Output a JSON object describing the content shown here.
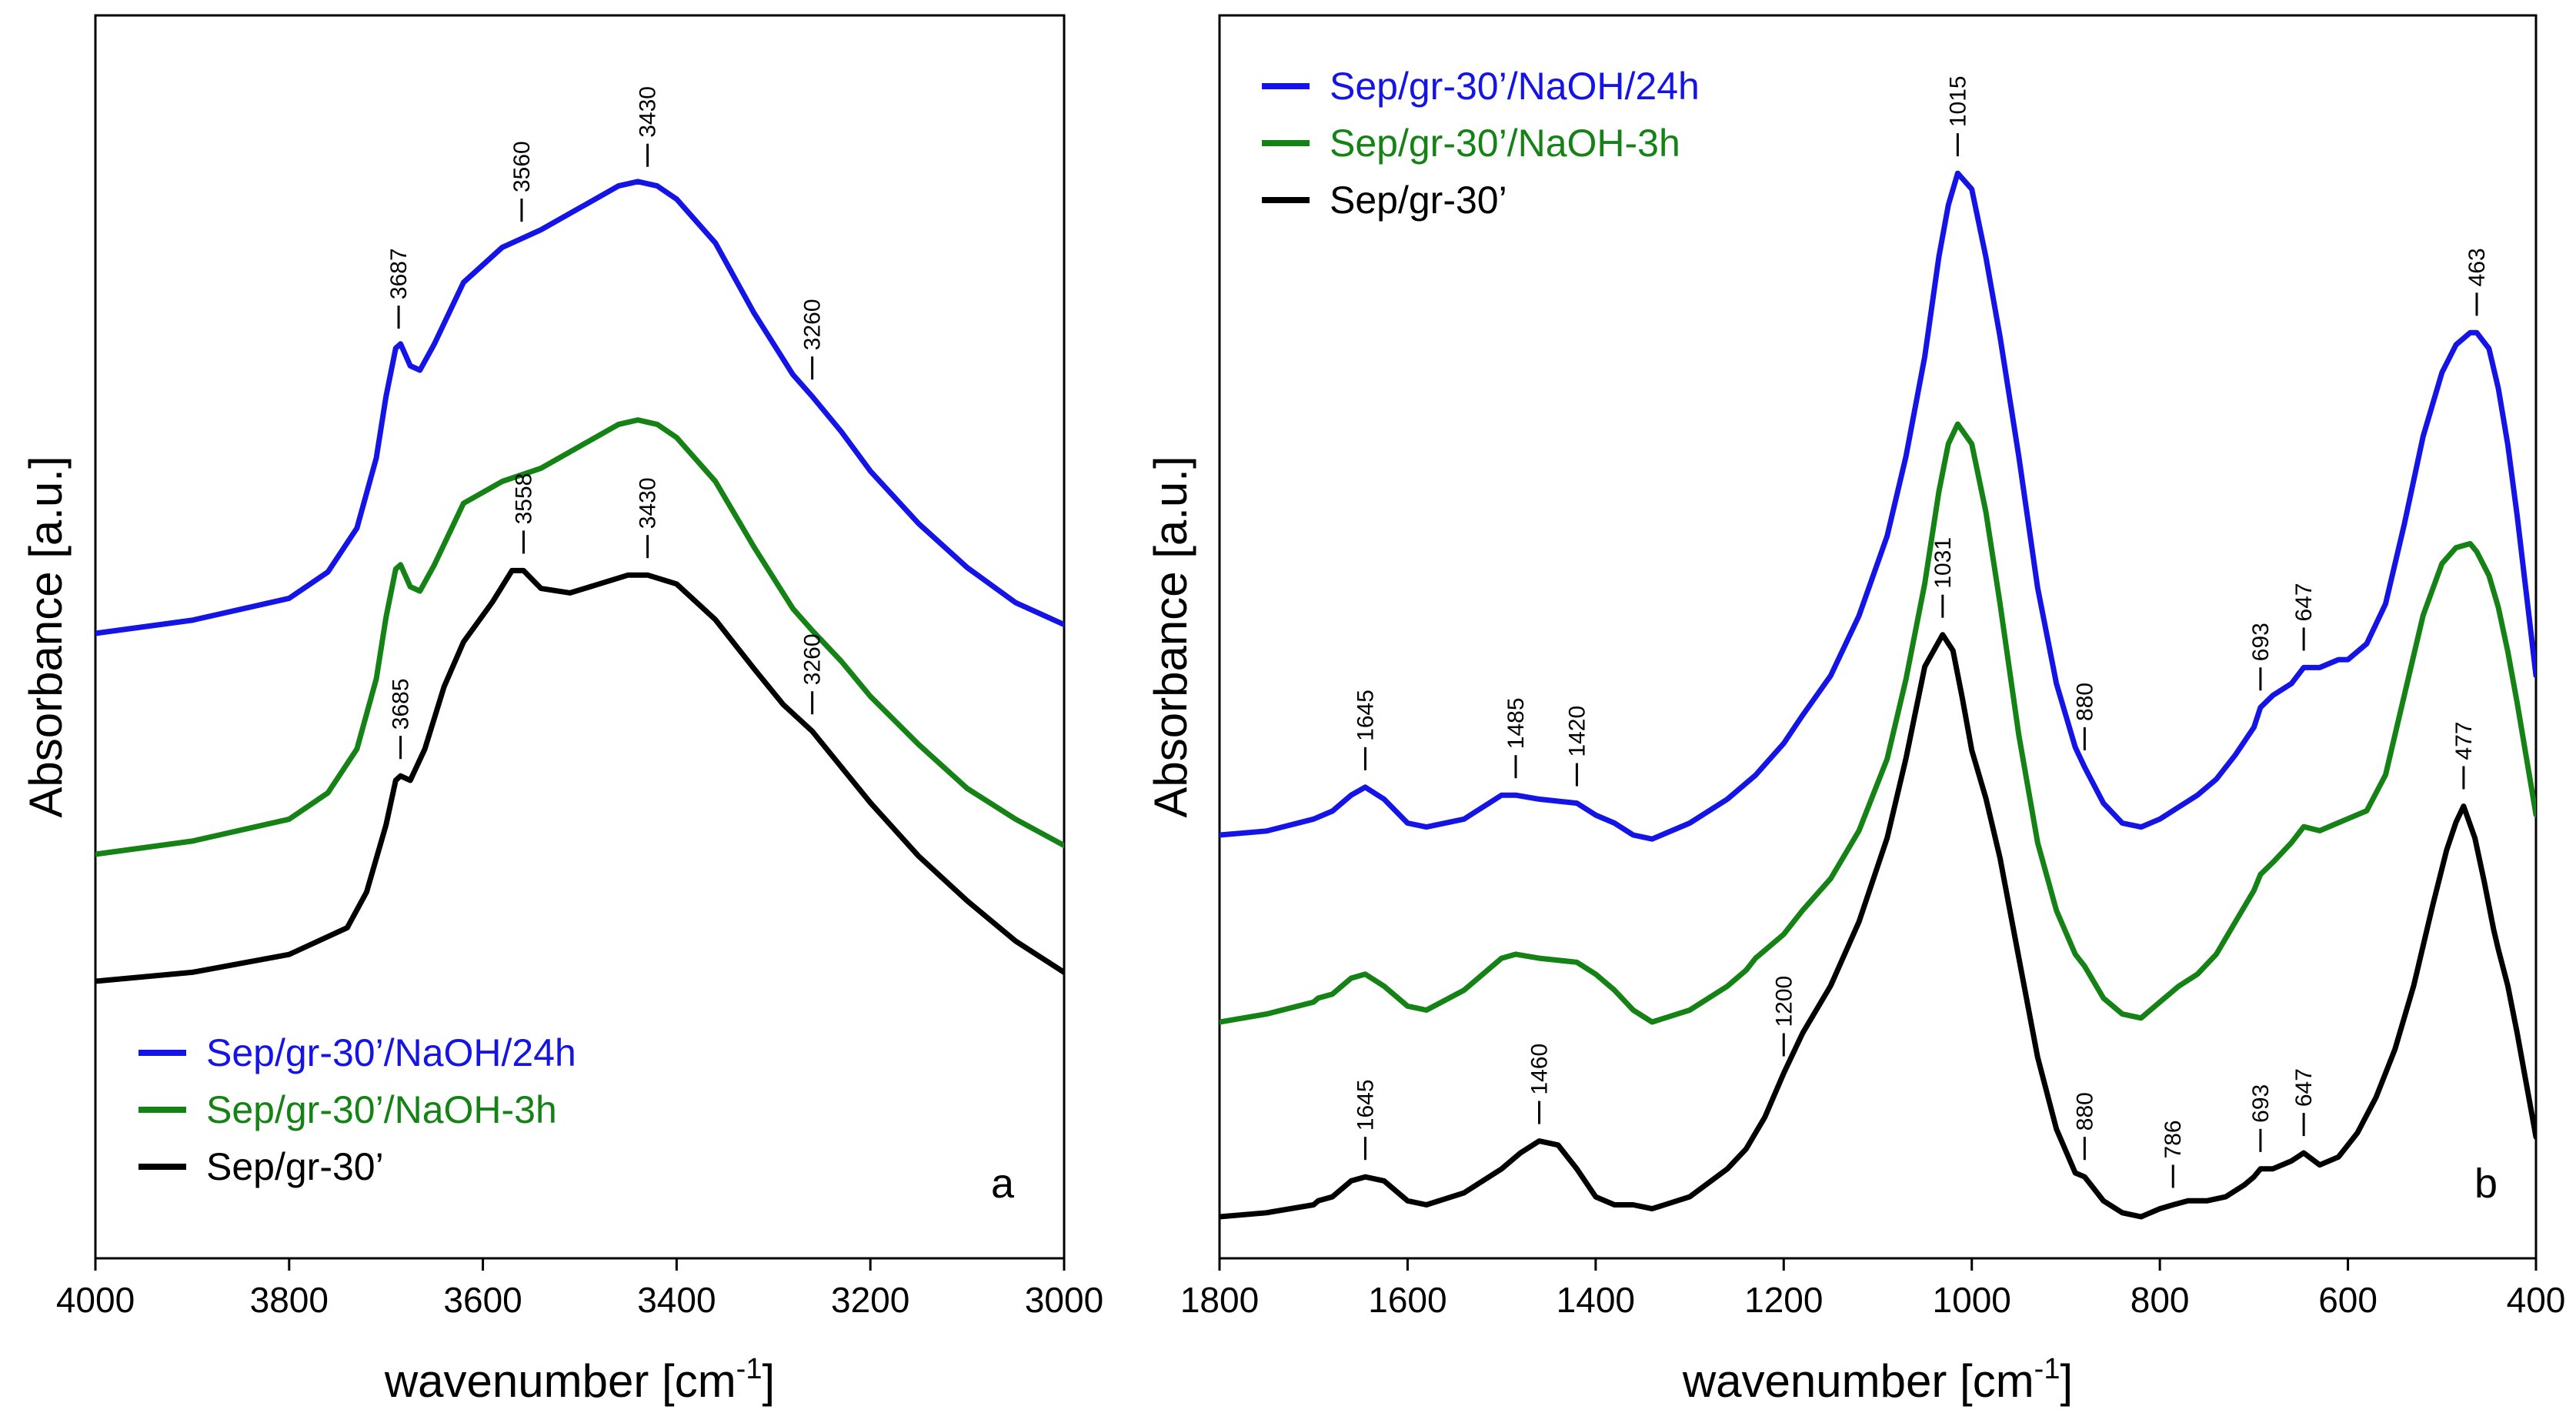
{
  "chart_data": [
    {
      "type": "line",
      "panel_letter": "a",
      "xlabel": "wavenumber [cm",
      "xlabel_sup": "-1",
      "xlabel_tail": "]",
      "ylabel": "Absorbance [a.u.]",
      "xlim": [
        4000,
        3000
      ],
      "xticks": [
        4000,
        3800,
        3600,
        3400,
        3200,
        3000
      ],
      "y_ticks": "none",
      "grid": false,
      "legend_position": "bottom-left",
      "series": [
        {
          "name": "Sep/gr-30’/NaOH/24h",
          "color": "#1414e6",
          "x": [
            4000,
            3900,
            3800,
            3760,
            3730,
            3710,
            3700,
            3690,
            3685,
            3675,
            3665,
            3650,
            3620,
            3580,
            3540,
            3500,
            3460,
            3440,
            3420,
            3400,
            3360,
            3320,
            3280,
            3260,
            3230,
            3200,
            3150,
            3100,
            3050,
            3000
          ],
          "y": [
            0.0,
            0.03,
            0.08,
            0.14,
            0.24,
            0.4,
            0.54,
            0.65,
            0.66,
            0.61,
            0.6,
            0.66,
            0.8,
            0.88,
            0.92,
            0.97,
            1.02,
            1.03,
            1.02,
            0.99,
            0.89,
            0.73,
            0.59,
            0.54,
            0.46,
            0.37,
            0.25,
            0.15,
            0.07,
            0.02
          ]
        },
        {
          "name": "Sep/gr-30’/NaOH-3h",
          "color": "#148214",
          "x": [
            4000,
            3900,
            3800,
            3760,
            3730,
            3710,
            3700,
            3690,
            3685,
            3675,
            3665,
            3650,
            3620,
            3580,
            3540,
            3500,
            3460,
            3440,
            3420,
            3400,
            3360,
            3320,
            3280,
            3260,
            3230,
            3200,
            3150,
            3100,
            3050,
            3000
          ],
          "y": [
            0.0,
            0.03,
            0.08,
            0.14,
            0.24,
            0.4,
            0.54,
            0.65,
            0.66,
            0.61,
            0.6,
            0.66,
            0.8,
            0.85,
            0.88,
            0.93,
            0.98,
            0.99,
            0.98,
            0.95,
            0.85,
            0.7,
            0.56,
            0.51,
            0.44,
            0.36,
            0.25,
            0.15,
            0.08,
            0.02
          ]
        },
        {
          "name": "Sep/gr-30’",
          "color": "#000000",
          "x": [
            4000,
            3900,
            3800,
            3740,
            3720,
            3700,
            3690,
            3685,
            3675,
            3660,
            3640,
            3620,
            3590,
            3570,
            3558,
            3540,
            3510,
            3480,
            3450,
            3430,
            3400,
            3360,
            3320,
            3290,
            3260,
            3230,
            3200,
            3150,
            3100,
            3050,
            3000
          ],
          "y": [
            0.0,
            0.02,
            0.06,
            0.12,
            0.2,
            0.35,
            0.45,
            0.46,
            0.45,
            0.52,
            0.66,
            0.76,
            0.85,
            0.92,
            0.92,
            0.88,
            0.87,
            0.89,
            0.91,
            0.91,
            0.89,
            0.81,
            0.7,
            0.62,
            0.56,
            0.48,
            0.4,
            0.28,
            0.18,
            0.09,
            0.02
          ]
        }
      ],
      "peak_labels": [
        {
          "series": "Sep/gr-30’/NaOH/24h",
          "x": 3687,
          "text": "3687"
        },
        {
          "series": "Sep/gr-30’/NaOH/24h",
          "x": 3560,
          "text": "3560"
        },
        {
          "series": "Sep/gr-30’/NaOH/24h",
          "x": 3430,
          "text": "3430"
        },
        {
          "series": "Sep/gr-30’/NaOH/24h",
          "x": 3260,
          "text": "3260"
        },
        {
          "series": "Sep/gr-30’",
          "x": 3685,
          "text": "3685"
        },
        {
          "series": "Sep/gr-30’",
          "x": 3558,
          "text": "3558"
        },
        {
          "series": "Sep/gr-30’",
          "x": 3430,
          "text": "3430"
        },
        {
          "series": "Sep/gr-30’",
          "x": 3260,
          "text": "3260"
        }
      ]
    },
    {
      "type": "line",
      "panel_letter": "b",
      "xlabel": "wavenumber [cm",
      "xlabel_sup": "-1",
      "xlabel_tail": "]",
      "ylabel": "Absorbance [a.u.]",
      "xlim": [
        1800,
        400
      ],
      "xticks": [
        1800,
        1600,
        1400,
        1200,
        1000,
        800,
        600,
        400
      ],
      "y_ticks": "none",
      "grid": false,
      "legend_position": "top-left",
      "series": [
        {
          "name": "Sep/gr-30’/NaOH/24h",
          "color": "#1414e6",
          "x": [
            1800,
            1750,
            1700,
            1690,
            1680,
            1660,
            1645,
            1625,
            1600,
            1580,
            1540,
            1500,
            1485,
            1460,
            1420,
            1400,
            1380,
            1360,
            1340,
            1300,
            1260,
            1230,
            1200,
            1180,
            1150,
            1120,
            1090,
            1070,
            1050,
            1035,
            1025,
            1015,
            1000,
            985,
            970,
            950,
            930,
            910,
            890,
            880,
            860,
            840,
            820,
            800,
            780,
            760,
            740,
            720,
            700,
            693,
            680,
            660,
            647,
            630,
            610,
            600,
            580,
            560,
            540,
            520,
            500,
            485,
            470,
            463,
            450,
            440,
            430,
            420,
            410,
            400
          ],
          "y": [
            0.0,
            0.01,
            0.04,
            0.05,
            0.06,
            0.1,
            0.12,
            0.09,
            0.03,
            0.02,
            0.04,
            0.1,
            0.1,
            0.09,
            0.08,
            0.05,
            0.03,
            0.0,
            -0.01,
            0.03,
            0.09,
            0.15,
            0.23,
            0.3,
            0.4,
            0.55,
            0.75,
            0.95,
            1.2,
            1.45,
            1.58,
            1.66,
            1.62,
            1.45,
            1.25,
            0.95,
            0.62,
            0.38,
            0.22,
            0.17,
            0.08,
            0.03,
            0.02,
            0.04,
            0.07,
            0.1,
            0.14,
            0.2,
            0.27,
            0.32,
            0.35,
            0.38,
            0.42,
            0.42,
            0.44,
            0.44,
            0.48,
            0.58,
            0.78,
            1.0,
            1.16,
            1.23,
            1.26,
            1.26,
            1.22,
            1.12,
            0.98,
            0.8,
            0.6,
            0.4
          ]
        },
        {
          "name": "Sep/gr-30’/NaOH-3h",
          "color": "#148214",
          "x": [
            1800,
            1750,
            1700,
            1695,
            1680,
            1660,
            1645,
            1625,
            1600,
            1580,
            1540,
            1500,
            1485,
            1460,
            1420,
            1400,
            1380,
            1360,
            1340,
            1300,
            1260,
            1240,
            1230,
            1220,
            1200,
            1180,
            1150,
            1120,
            1090,
            1070,
            1050,
            1035,
            1025,
            1015,
            1000,
            985,
            970,
            950,
            930,
            910,
            890,
            880,
            860,
            840,
            820,
            800,
            780,
            760,
            740,
            720,
            700,
            693,
            680,
            660,
            647,
            630,
            610,
            600,
            580,
            560,
            540,
            520,
            500,
            485,
            470,
            463,
            450,
            440,
            430,
            420,
            410,
            400
          ],
          "y": [
            0.0,
            0.02,
            0.05,
            0.06,
            0.07,
            0.11,
            0.12,
            0.09,
            0.04,
            0.03,
            0.08,
            0.16,
            0.17,
            0.16,
            0.15,
            0.12,
            0.08,
            0.03,
            0.0,
            0.03,
            0.09,
            0.13,
            0.16,
            0.18,
            0.22,
            0.28,
            0.36,
            0.48,
            0.66,
            0.86,
            1.1,
            1.33,
            1.45,
            1.5,
            1.45,
            1.28,
            1.05,
            0.72,
            0.45,
            0.28,
            0.17,
            0.14,
            0.06,
            0.02,
            0.01,
            0.05,
            0.09,
            0.12,
            0.17,
            0.25,
            0.33,
            0.37,
            0.4,
            0.45,
            0.49,
            0.48,
            0.5,
            0.51,
            0.53,
            0.62,
            0.82,
            1.02,
            1.15,
            1.19,
            1.2,
            1.18,
            1.12,
            1.04,
            0.93,
            0.8,
            0.66,
            0.52
          ]
        },
        {
          "name": "Sep/gr-30’",
          "color": "#000000",
          "x": [
            1800,
            1750,
            1700,
            1695,
            1680,
            1660,
            1645,
            1625,
            1600,
            1580,
            1540,
            1500,
            1480,
            1460,
            1440,
            1420,
            1400,
            1380,
            1360,
            1340,
            1300,
            1260,
            1240,
            1220,
            1200,
            1180,
            1150,
            1120,
            1090,
            1070,
            1050,
            1031,
            1020,
            1010,
            1000,
            985,
            970,
            950,
            930,
            910,
            890,
            880,
            870,
            860,
            840,
            820,
            800,
            786,
            770,
            750,
            730,
            710,
            700,
            693,
            680,
            660,
            647,
            630,
            610,
            590,
            570,
            550,
            530,
            510,
            495,
            485,
            477,
            465,
            455,
            445,
            440,
            430,
            420,
            410,
            400
          ],
          "y": [
            0.0,
            0.01,
            0.03,
            0.04,
            0.05,
            0.09,
            0.1,
            0.09,
            0.04,
            0.03,
            0.06,
            0.12,
            0.16,
            0.19,
            0.18,
            0.12,
            0.05,
            0.03,
            0.03,
            0.02,
            0.05,
            0.12,
            0.17,
            0.25,
            0.36,
            0.46,
            0.58,
            0.74,
            0.95,
            1.15,
            1.38,
            1.46,
            1.42,
            1.3,
            1.17,
            1.05,
            0.9,
            0.65,
            0.4,
            0.22,
            0.11,
            0.1,
            0.07,
            0.04,
            0.01,
            0.0,
            0.02,
            0.03,
            0.04,
            0.04,
            0.05,
            0.08,
            0.1,
            0.12,
            0.12,
            0.14,
            0.16,
            0.13,
            0.15,
            0.21,
            0.3,
            0.42,
            0.58,
            0.78,
            0.92,
            0.99,
            1.03,
            0.95,
            0.84,
            0.72,
            0.67,
            0.58,
            0.46,
            0.33,
            0.2
          ]
        }
      ],
      "peak_labels": [
        {
          "series": "Sep/gr-30’/NaOH/24h",
          "x": 1645,
          "text": "1645"
        },
        {
          "series": "Sep/gr-30’/NaOH/24h",
          "x": 1485,
          "text": "1485"
        },
        {
          "series": "Sep/gr-30’/NaOH/24h",
          "x": 1420,
          "text": "1420"
        },
        {
          "series": "Sep/gr-30’/NaOH/24h",
          "x": 1015,
          "text": "1015"
        },
        {
          "series": "Sep/gr-30’/NaOH/24h",
          "x": 880,
          "text": "880"
        },
        {
          "series": "Sep/gr-30’/NaOH/24h",
          "x": 693,
          "text": "693"
        },
        {
          "series": "Sep/gr-30’/NaOH/24h",
          "x": 647,
          "text": "647"
        },
        {
          "series": "Sep/gr-30’/NaOH/24h",
          "x": 463,
          "text": "463"
        },
        {
          "series": "Sep/gr-30’",
          "x": 1645,
          "text": "1645"
        },
        {
          "series": "Sep/gr-30’",
          "x": 1460,
          "text": "1460"
        },
        {
          "series": "Sep/gr-30’",
          "x": 1200,
          "text": "1200"
        },
        {
          "series": "Sep/gr-30’",
          "x": 1031,
          "text": "1031"
        },
        {
          "series": "Sep/gr-30’",
          "x": 880,
          "text": "880"
        },
        {
          "series": "Sep/gr-30’",
          "x": 786,
          "text": "786"
        },
        {
          "series": "Sep/gr-30’",
          "x": 693,
          "text": "693"
        },
        {
          "series": "Sep/gr-30’",
          "x": 647,
          "text": "647"
        },
        {
          "series": "Sep/gr-30’",
          "x": 477,
          "text": "477"
        }
      ]
    }
  ]
}
